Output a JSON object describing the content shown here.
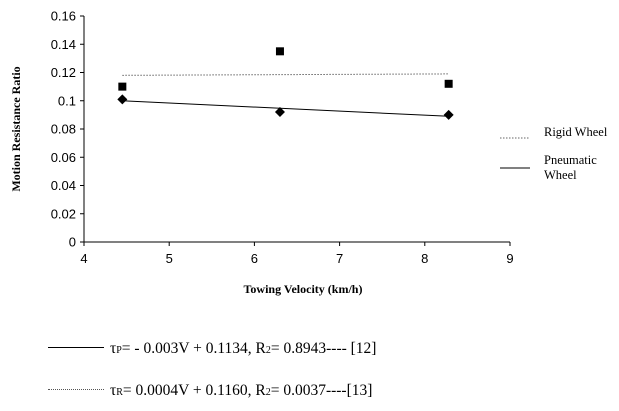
{
  "chart_data": {
    "type": "scatter",
    "xlabel": "Towing Velocity (km/h)",
    "ylabel": "Motion Resistance Ratio",
    "xlim": [
      4,
      9
    ],
    "ylim": [
      0,
      0.16
    ],
    "x_ticks": [
      "4",
      "5",
      "6",
      "7",
      "8",
      "9"
    ],
    "y_ticks": [
      "0",
      "0.02",
      "0.04",
      "0.06",
      "0.08",
      "0.1",
      "0.12",
      "0.14",
      "0.16"
    ],
    "grid": false,
    "legend_position": "right",
    "series": [
      {
        "name": "Rigid Wheel",
        "marker": "square",
        "points": [
          {
            "x": 4.45,
            "y": 0.11
          },
          {
            "x": 6.3,
            "y": 0.135
          },
          {
            "x": 8.28,
            "y": 0.112
          }
        ],
        "trendline": {
          "style": "dotted",
          "x": [
            4.45,
            8.28
          ],
          "y": [
            0.118,
            0.119
          ]
        }
      },
      {
        "name": "Pneumatic\nWheel",
        "marker": "diamond",
        "points": [
          {
            "x": 4.45,
            "y": 0.101
          },
          {
            "x": 6.3,
            "y": 0.092
          },
          {
            "x": 8.28,
            "y": 0.09
          }
        ],
        "trendline": {
          "style": "solid",
          "x": [
            4.45,
            8.28
          ],
          "y": [
            0.1,
            0.089
          ]
        }
      }
    ]
  },
  "equations": {
    "p": {
      "tau": "τ",
      "sub": "P",
      "body": " = - 0.003V + 0.1134,  R",
      "sup": "2",
      "tail": " = 0.8943---- [12]"
    },
    "r": {
      "tau": "τ",
      "sub": "R",
      "body": " =  0.0004V + 0.1160,  R",
      "sup": "2",
      "tail": " = 0.0037----[13]"
    }
  }
}
